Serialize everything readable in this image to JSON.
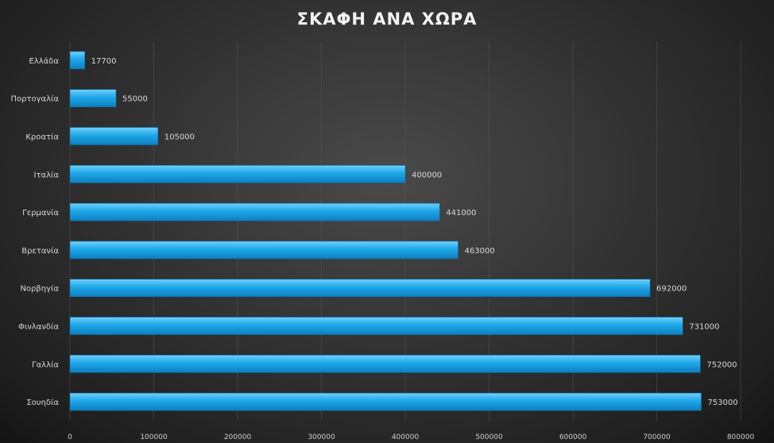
{
  "chart_data": {
    "type": "bar",
    "orientation": "horizontal",
    "title": "ΣΚΑΦΗ ΑΝΑ ΧΩΡΑ",
    "categories": [
      "Ελλάδα",
      "Πορτογαλία",
      "Κροατία",
      "Ιταλία",
      "Γερμανία",
      "Βρετανία",
      "Νορβηγία",
      "Φινλανδία",
      "Γαλλία",
      "Σουηδία"
    ],
    "values": [
      17700,
      55000,
      105000,
      400000,
      441000,
      463000,
      692000,
      731000,
      752000,
      753000
    ],
    "value_labels": [
      "17700",
      "55000",
      "105000",
      "400000",
      "441000",
      "463000",
      "692000",
      "731000",
      "752000",
      "753000"
    ],
    "xlim": [
      0,
      800000
    ],
    "x_ticks": [
      0,
      100000,
      200000,
      300000,
      400000,
      500000,
      600000,
      700000,
      800000
    ],
    "x_tick_labels": [
      "0",
      "100000",
      "200000",
      "300000",
      "400000",
      "500000",
      "600000",
      "700000",
      "800000"
    ],
    "xlabel": "",
    "ylabel": "",
    "grid": true,
    "legend": false,
    "bar_color": "#1ea7e8",
    "background_color": "#333333"
  }
}
